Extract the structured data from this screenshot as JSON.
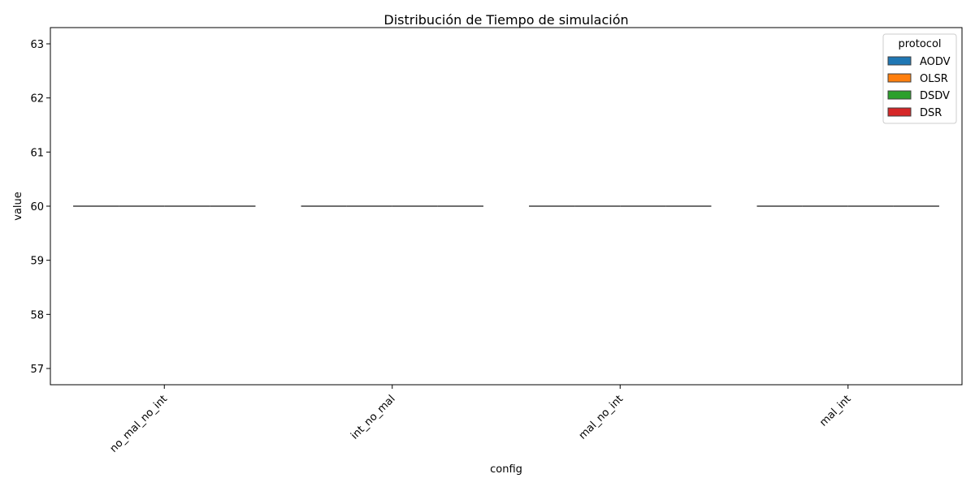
{
  "chart_data": {
    "type": "box",
    "title": "Distribución de Tiempo de simulación",
    "xlabel": "config",
    "ylabel": "value",
    "categories": [
      "no_mal_no_int",
      "int_no_mal",
      "mal_no_int",
      "mal_int"
    ],
    "ylim": [
      56.7,
      63.3
    ],
    "yticks": [
      57,
      58,
      59,
      60,
      61,
      62,
      63
    ],
    "grid": false,
    "legend": {
      "title": "protocol",
      "position": "top-right"
    },
    "series": [
      {
        "name": "AODV",
        "color": "#1f77b4",
        "values": [
          60,
          60,
          60,
          60
        ]
      },
      {
        "name": "OLSR",
        "color": "#ff7f0e",
        "values": [
          60,
          60,
          60,
          60
        ]
      },
      {
        "name": "DSDV",
        "color": "#2ca02c",
        "values": [
          60,
          60,
          60,
          60
        ]
      },
      {
        "name": "DSR",
        "color": "#d62728",
        "values": [
          60,
          60,
          60,
          60
        ]
      }
    ]
  }
}
